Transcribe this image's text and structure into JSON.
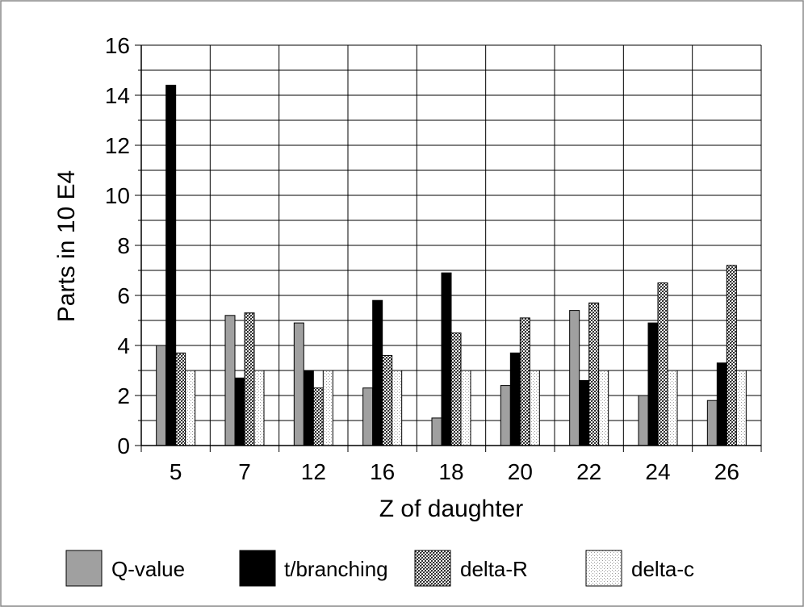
{
  "chart_data": {
    "type": "bar",
    "title": "",
    "xlabel": "Z of daughter",
    "ylabel": "Parts in 10 E4",
    "categories": [
      "5",
      "7",
      "12",
      "16",
      "18",
      "20",
      "22",
      "24",
      "26"
    ],
    "ylim": [
      0,
      16
    ],
    "yticks": [
      "0",
      "2",
      "4",
      "6",
      "8",
      "10",
      "12",
      "14",
      "16"
    ],
    "grid": true,
    "legend_position": "bottom",
    "series": [
      {
        "name": "Q-value",
        "color": "#9e9e9e",
        "pattern": "solid-gray",
        "values": [
          4.0,
          5.2,
          4.9,
          2.3,
          1.1,
          2.4,
          5.4,
          2.0,
          1.8
        ]
      },
      {
        "name": "t/branching",
        "color": "#000000",
        "pattern": "solid-black",
        "values": [
          14.4,
          2.7,
          3.0,
          5.8,
          6.9,
          3.7,
          2.6,
          4.9,
          3.3
        ]
      },
      {
        "name": "delta-R",
        "color": "#777777",
        "pattern": "dense-hatch",
        "values": [
          3.7,
          5.3,
          2.3,
          3.6,
          4.5,
          5.1,
          5.7,
          6.5,
          7.2
        ]
      },
      {
        "name": "delta-c",
        "color": "#dddddd",
        "pattern": "light-dots",
        "values": [
          3.0,
          3.0,
          3.0,
          3.0,
          3.0,
          3.0,
          3.0,
          3.0,
          3.0
        ]
      }
    ]
  }
}
